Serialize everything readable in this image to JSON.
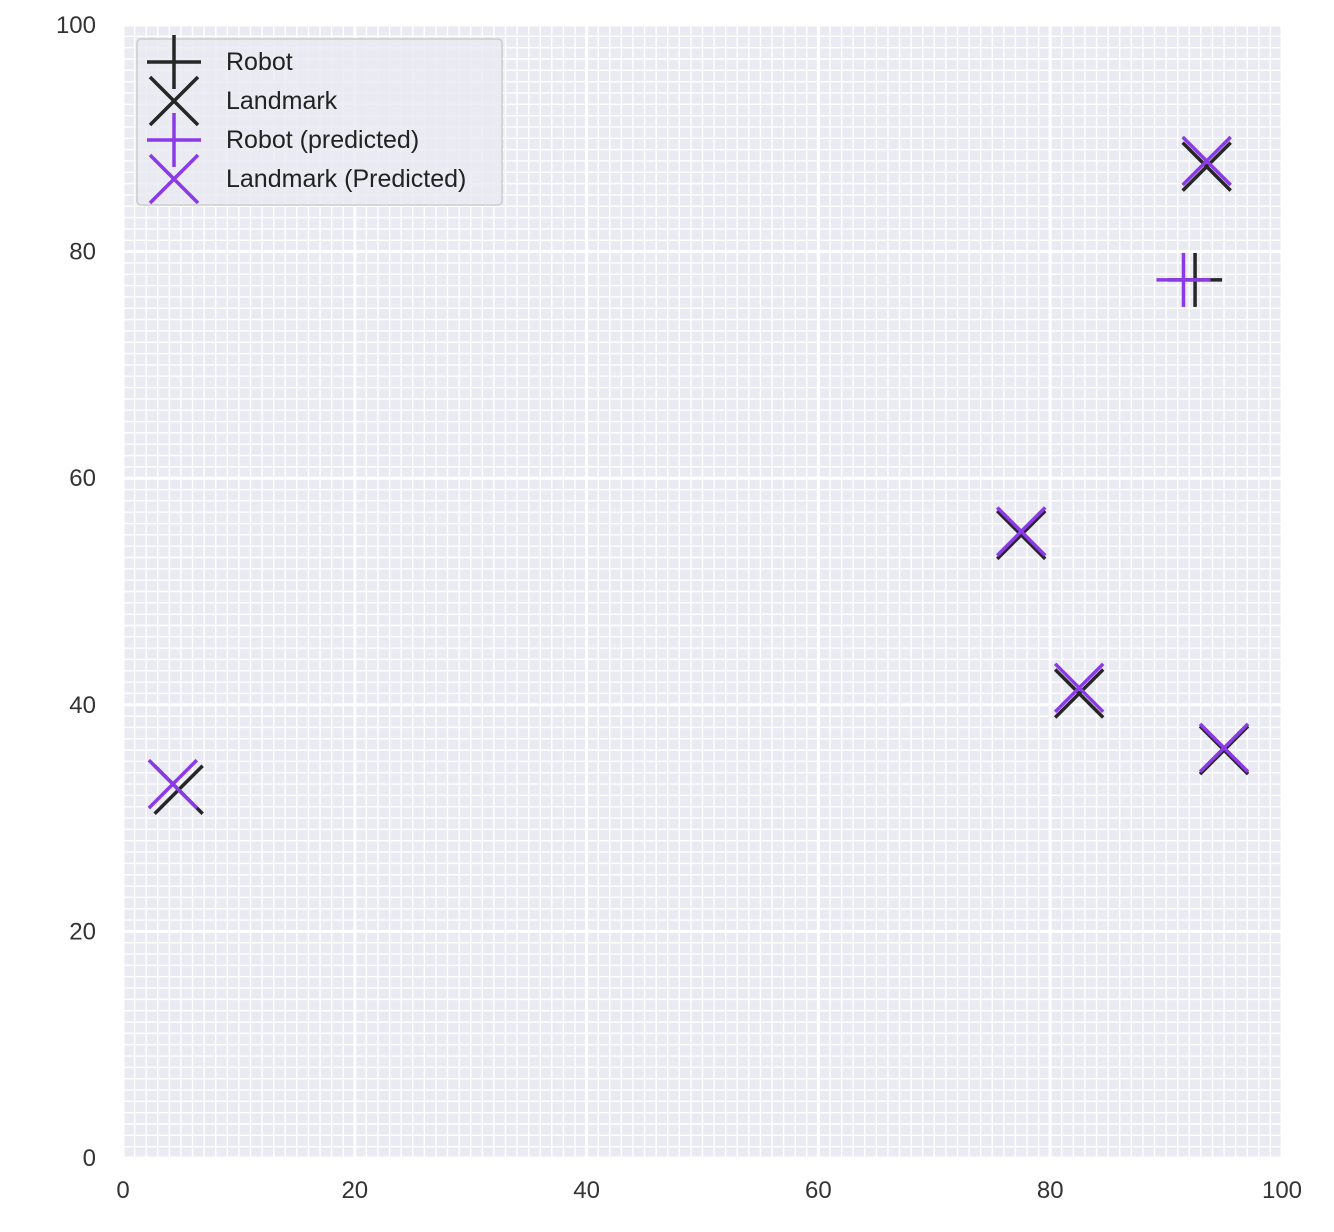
{
  "chart_data": {
    "type": "scatter",
    "title": "",
    "xlabel": "",
    "ylabel": "",
    "xlim": [
      0,
      100
    ],
    "ylim": [
      0,
      100
    ],
    "x_ticks": [
      "0",
      "20",
      "40",
      "60",
      "80",
      "100"
    ],
    "y_ticks": [
      "0",
      "20",
      "40",
      "60",
      "80",
      "100"
    ],
    "grid": true,
    "minor_grid": true,
    "legend_position": "top-left",
    "series": [
      {
        "name": "Robot",
        "marker": "plus",
        "color": "#262626",
        "points": [
          [
            92.5,
            77.5
          ]
        ]
      },
      {
        "name": "Landmark",
        "marker": "x",
        "color": "#262626",
        "points": [
          [
            93.5,
            87.5
          ],
          [
            77.5,
            55
          ],
          [
            82.5,
            41
          ],
          [
            95,
            36
          ],
          [
            4.8,
            32.5
          ]
        ]
      },
      {
        "name": "Robot (predicted)",
        "marker": "plus",
        "color": "#8a3ae6",
        "points": [
          [
            91.5,
            77.5
          ]
        ]
      },
      {
        "name": "Landmark (Predicted)",
        "marker": "x",
        "color": "#8a3ae6",
        "points": [
          [
            93.5,
            88
          ],
          [
            77.5,
            55.3
          ],
          [
            82.5,
            41.5
          ],
          [
            95,
            36.2
          ],
          [
            4.3,
            33
          ]
        ]
      }
    ]
  }
}
